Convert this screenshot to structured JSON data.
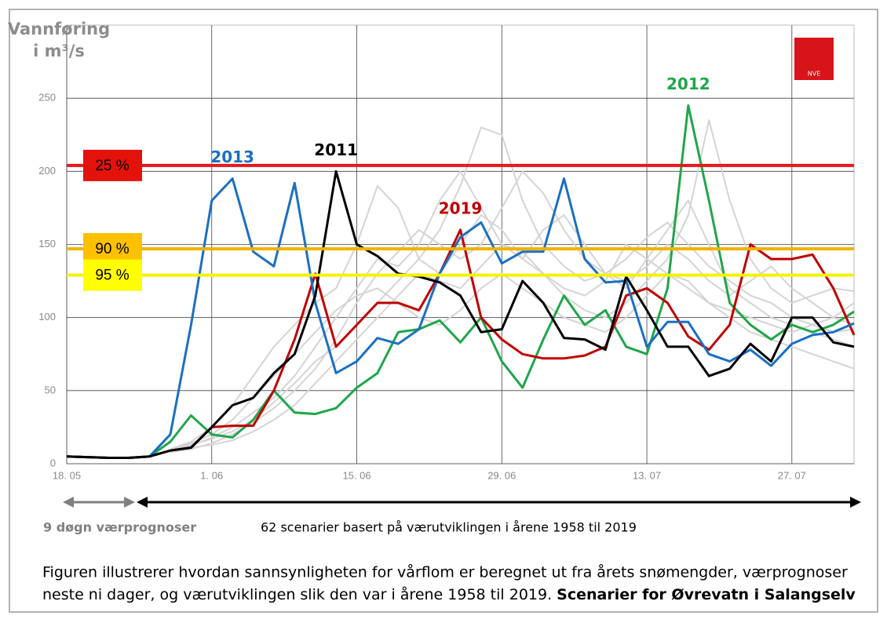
{
  "chart_data": {
    "type": "line",
    "y_title": [
      "Vannføring",
      "i m³/s"
    ],
    "categories": [
      "18. 05",
      null,
      null,
      null,
      null,
      null,
      null,
      "1. 06",
      null,
      null,
      null,
      null,
      null,
      null,
      "15. 06",
      null,
      null,
      null,
      null,
      null,
      null,
      "29. 06",
      null,
      null,
      null,
      null,
      null,
      null,
      "13. 07",
      null,
      null,
      null,
      null,
      null,
      null,
      "27. 07",
      null,
      null,
      null
    ],
    "ylim": [
      0,
      300
    ],
    "yticks": [
      0,
      50,
      100,
      150,
      200,
      250
    ],
    "grid": true,
    "series": [
      {
        "color": "#d4d4d4",
        "values": [
          null,
          null,
          null,
          null,
          null,
          10,
          15,
          25,
          40,
          60,
          80,
          95,
          110,
          120,
          150,
          190,
          175,
          140,
          130,
          150,
          170,
          160,
          140,
          130,
          120,
          115,
          125,
          150,
          140,
          130,
          120,
          110,
          105,
          100,
          95,
          90,
          95,
          100,
          110
        ]
      },
      {
        "color": "#d4d4d4",
        "values": [
          null,
          null,
          null,
          null,
          null,
          9,
          12,
          18,
          25,
          35,
          45,
          60,
          80,
          100,
          120,
          140,
          135,
          150,
          180,
          200,
          175,
          150,
          140,
          160,
          170,
          150,
          130,
          120,
          140,
          160,
          180,
          150,
          120,
          110,
          100,
          95,
          90,
          85,
          80
        ]
      },
      {
        "color": "#d4d4d4",
        "values": [
          null,
          null,
          null,
          null,
          null,
          8,
          10,
          14,
          20,
          28,
          38,
          50,
          65,
          85,
          110,
          130,
          145,
          160,
          150,
          140,
          150,
          175,
          200,
          185,
          160,
          140,
          130,
          125,
          135,
          150,
          140,
          125,
          115,
          125,
          135,
          120,
          110,
          100,
          95
        ]
      },
      {
        "color": "#d4d4d4",
        "values": [
          null,
          null,
          null,
          null,
          null,
          9,
          11,
          13,
          16,
          22,
          30,
          40,
          55,
          70,
          85,
          100,
          115,
          130,
          125,
          120,
          135,
          150,
          145,
          130,
          115,
          105,
          100,
          110,
          125,
          140,
          170,
          235,
          180,
          140,
          120,
          110,
          115,
          120,
          118
        ]
      },
      {
        "color": "#d4d4d4",
        "values": [
          null,
          null,
          null,
          null,
          null,
          10,
          14,
          20,
          30,
          45,
          60,
          75,
          90,
          105,
          115,
          120,
          110,
          100,
          95,
          105,
          120,
          130,
          120,
          110,
          100,
          95,
          90,
          100,
          115,
          130,
          125,
          110,
          100,
          90,
          85,
          80,
          75,
          70,
          65
        ]
      },
      {
        "color": "#d4d4d4",
        "values": [
          null,
          null,
          null,
          null,
          null,
          9,
          13,
          17,
          22,
          30,
          42,
          55,
          70,
          80,
          95,
          110,
          125,
          140,
          160,
          190,
          230,
          225,
          180,
          150,
          135,
          125,
          130,
          140,
          155,
          165,
          150,
          135,
          125,
          115,
          110,
          100,
          95,
          90,
          92
        ]
      },
      {
        "name": "2012",
        "color": "#1fa64a",
        "values": [
          5,
          4.5,
          4,
          4,
          5,
          15,
          33,
          20,
          18,
          30,
          50,
          35,
          34,
          38,
          52,
          62,
          90,
          92,
          98,
          83,
          100,
          70,
          52,
          85,
          115,
          95,
          105,
          80,
          75,
          120,
          245,
          180,
          110,
          95,
          85,
          95,
          90,
          95,
          104
        ]
      },
      {
        "name": "2019",
        "color": "#c00000",
        "values": [
          5,
          4.5,
          4,
          4,
          5,
          9,
          11,
          25,
          26,
          26,
          50,
          85,
          130,
          80,
          95,
          110,
          110,
          105,
          130,
          160,
          100,
          85,
          75,
          72,
          72,
          74,
          80,
          115,
          120,
          110,
          87,
          78,
          95,
          150,
          140,
          140,
          143,
          120,
          88
        ]
      },
      {
        "name": "2013",
        "color": "#1b6fc1",
        "values": [
          5,
          4.5,
          4,
          4,
          5,
          20,
          95,
          180,
          195,
          145,
          135,
          192,
          110,
          62,
          70,
          86,
          82,
          92,
          130,
          155,
          165,
          137,
          145,
          145,
          195,
          140,
          124,
          125,
          80,
          97,
          97,
          75,
          70,
          78,
          67,
          82,
          88,
          90,
          96
        ]
      },
      {
        "name": "2011",
        "color": "#000000",
        "values": [
          5,
          4.5,
          4,
          4,
          5,
          9,
          11,
          25,
          40,
          45,
          62,
          75,
          115,
          200,
          150,
          142,
          130,
          128,
          124,
          115,
          90,
          92,
          125,
          110,
          86,
          85,
          78,
          128,
          105,
          80,
          80,
          60,
          65,
          82,
          70,
          100,
          100,
          83,
          80
        ]
      }
    ],
    "thresholds": [
      {
        "label": "25 %",
        "value": 204,
        "color": "#e8161b",
        "box": "#e3120b"
      },
      {
        "label": "90 %",
        "value": 147,
        "color": "#f2b200",
        "box": "#ffc000"
      },
      {
        "label": "95 %",
        "value": 129,
        "color": "#f5f200",
        "box": "#ffff00"
      }
    ]
  },
  "logo": "NVE",
  "arrows": {
    "forecast": "9 døgn værprognoser",
    "scenarios": "62 scenarier basert på værutviklingen i årene 1958 til 2019"
  },
  "caption": {
    "line1": "Figuren illustrerer hvordan sannsynligheten for vårflom er beregnet ut fra årets snømengder, værprognoser",
    "line2": "neste ni dager, og værutviklingen slik den var i årene 1958 til 2019.",
    "bold": "Scenarier for Øvrevatn i Salangselv"
  }
}
